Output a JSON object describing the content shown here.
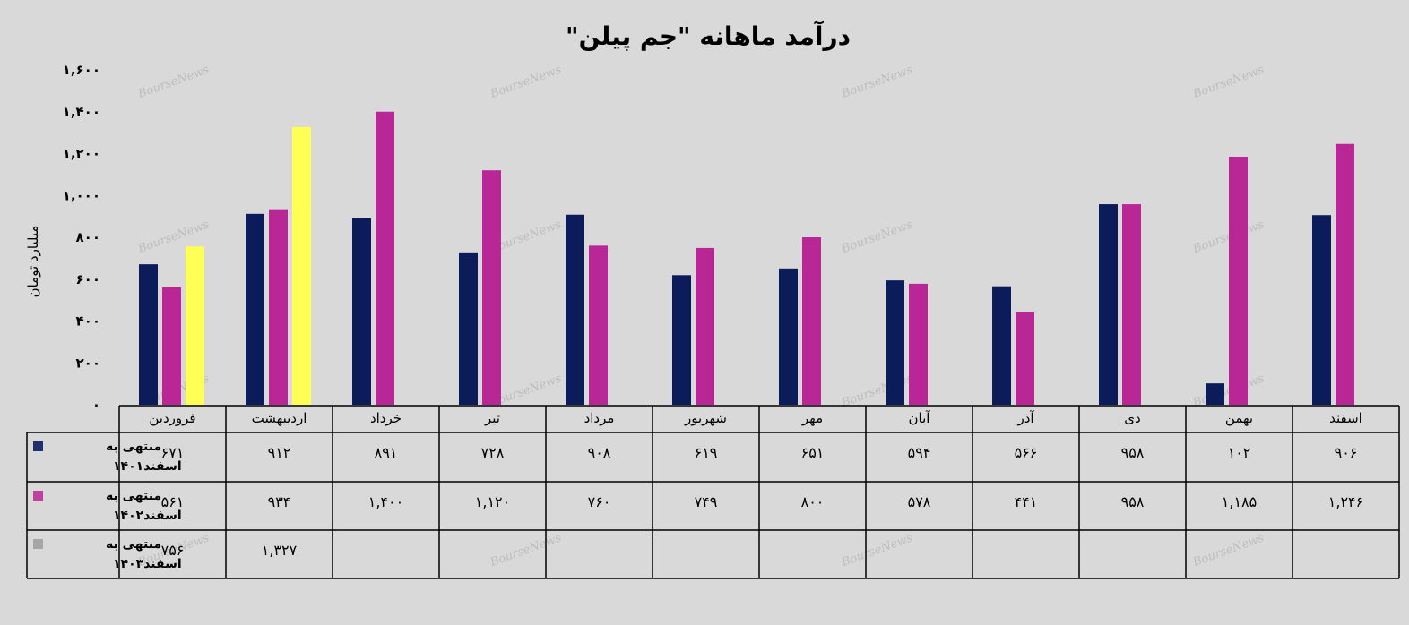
{
  "watermark": "BourseNews",
  "chart_data": {
    "type": "bar",
    "title": "درآمد ماهانه \"جم پیلن\"",
    "ylabel": "میلیارد تومان",
    "ylim": [
      0,
      1600
    ],
    "yticks": [
      0,
      200,
      400,
      600,
      800,
      1000,
      1200,
      1400,
      1600
    ],
    "ytick_labels": [
      "۰",
      "۲۰۰",
      "۴۰۰",
      "۶۰۰",
      "۸۰۰",
      "۱,۰۰۰",
      "۱,۲۰۰",
      "۱,۴۰۰",
      "۱,۶۰۰"
    ],
    "categories": [
      "فروردین",
      "اردیبهشت",
      "خرداد",
      "تیر",
      "مرداد",
      "شهریور",
      "مهر",
      "آبان",
      "آذر",
      "دی",
      "بهمن",
      "اسفند"
    ],
    "series": [
      {
        "name_line1": "منتهی به",
        "name_line2": "اسفند۱۴۰۱",
        "color": "#0c1c5a",
        "legend_color": "#1f2f70",
        "values": [
          671,
          912,
          891,
          728,
          908,
          619,
          651,
          594,
          566,
          958,
          102,
          906
        ],
        "labels": [
          "۶۷۱",
          "۹۱۲",
          "۸۹۱",
          "۷۲۸",
          "۹۰۸",
          "۶۱۹",
          "۶۵۱",
          "۵۹۴",
          "۵۶۶",
          "۹۵۸",
          "۱۰۲",
          "۹۰۶"
        ]
      },
      {
        "name_line1": "منتهی به",
        "name_line2": "اسفند۱۴۰۲",
        "color": "#b92797",
        "legend_color": "#c040a0",
        "values": [
          561,
          934,
          1400,
          1120,
          760,
          749,
          800,
          578,
          441,
          958,
          1185,
          1246
        ],
        "labels": [
          "۵۶۱",
          "۹۳۴",
          "۱,۴۰۰",
          "۱,۱۲۰",
          "۷۶۰",
          "۷۴۹",
          "۸۰۰",
          "۵۷۸",
          "۴۴۱",
          "۹۵۸",
          "۱,۱۸۵",
          "۱,۲۴۶"
        ]
      },
      {
        "name_line1": "منتهی به",
        "name_line2": "اسفند۱۴۰۳",
        "color": "#ffff55",
        "legend_color": "#a6a6a6",
        "values": [
          756,
          1327,
          null,
          null,
          null,
          null,
          null,
          null,
          null,
          null,
          null,
          null
        ],
        "labels": [
          "۷۵۶",
          "۱,۳۲۷",
          "",
          "",
          "",
          "",
          "",
          "",
          "",
          "",
          "",
          ""
        ]
      }
    ]
  }
}
